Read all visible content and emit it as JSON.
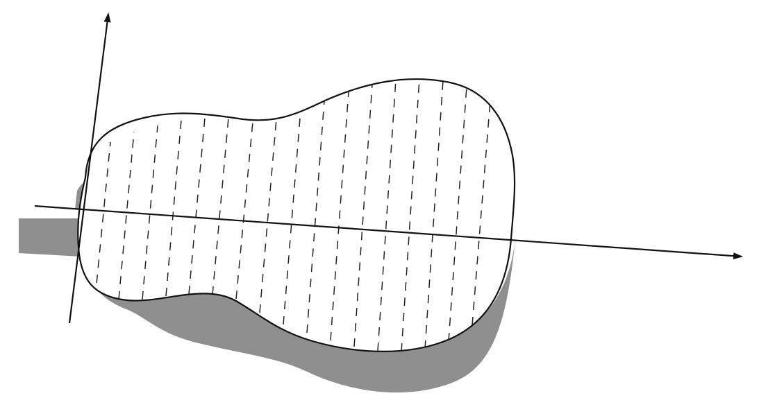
{
  "figure": {
    "subject": "guitar-body-outline",
    "axes_count": 2,
    "grid_style": "dashed-vertical-lines",
    "colors": {
      "background": "#ffffff",
      "stroke": "#111111",
      "shadow": "#8f8f8f",
      "grid": "#222222"
    }
  }
}
